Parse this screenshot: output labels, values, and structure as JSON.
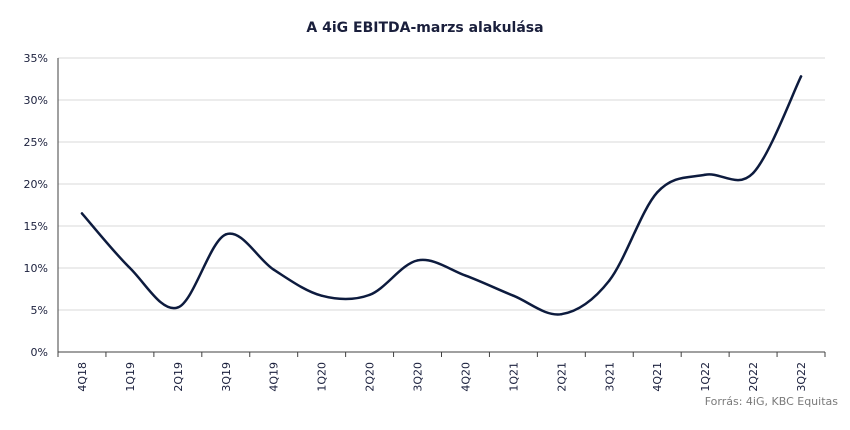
{
  "chart_data": {
    "type": "line",
    "title": "A 4iG EBITDA-marzs alakulása",
    "source": "Forrás: 4iG, KBC Equitas",
    "categories": [
      "4Q18",
      "1Q19",
      "2Q19",
      "3Q19",
      "4Q19",
      "1Q20",
      "2Q20",
      "3Q20",
      "4Q20",
      "1Q21",
      "2Q21",
      "3Q21",
      "4Q21",
      "1Q22",
      "2Q22",
      "3Q22"
    ],
    "series": [
      {
        "values": [
          16.5,
          10.0,
          5.3,
          14.0,
          9.8,
          6.7,
          6.8,
          10.9,
          9.1,
          6.7,
          4.5,
          8.5,
          19.0,
          21.1,
          21.3,
          32.8
        ]
      }
    ],
    "ylim": [
      0,
      35
    ],
    "yticks": [
      "0%",
      "5%",
      "10%",
      "15%",
      "20%",
      "25%",
      "30%",
      "35%"
    ],
    "grid": true,
    "colors": {
      "line": "#0d1b3e",
      "grid": "#d9d9d9",
      "axis": "#404040",
      "text": "#1a1f3c"
    }
  }
}
